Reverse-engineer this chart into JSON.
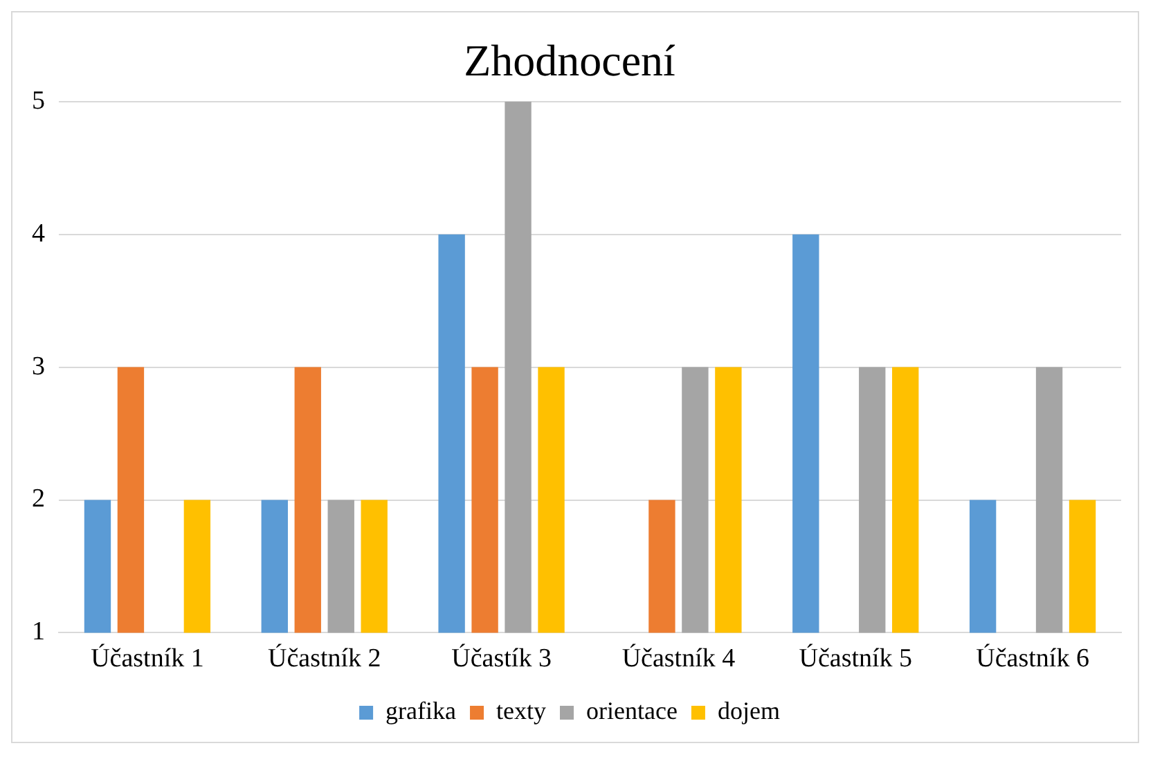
{
  "chart_data": {
    "type": "bar",
    "title": "Zhodnocení",
    "categories": [
      "Účastník 1",
      "Účastník 2",
      "Účastík 3",
      "Účastník 4",
      "Účastník 5",
      "Účastník 6"
    ],
    "series": [
      {
        "name": "grafika",
        "color": "#5b9bd5",
        "values": [
          2,
          2,
          4,
          null,
          4,
          2
        ]
      },
      {
        "name": "texty",
        "color": "#ed7d31",
        "values": [
          3,
          3,
          3,
          2,
          null,
          null
        ]
      },
      {
        "name": "orientace",
        "color": "#a5a5a5",
        "values": [
          null,
          2,
          5,
          3,
          3,
          3
        ]
      },
      {
        "name": "dojem",
        "color": "#ffc000",
        "values": [
          2,
          2,
          3,
          3,
          3,
          2
        ]
      }
    ],
    "ylim": [
      1,
      5
    ],
    "yticks": [
      1,
      2,
      3,
      4,
      5
    ],
    "grid": "y",
    "legend": "bottom"
  }
}
